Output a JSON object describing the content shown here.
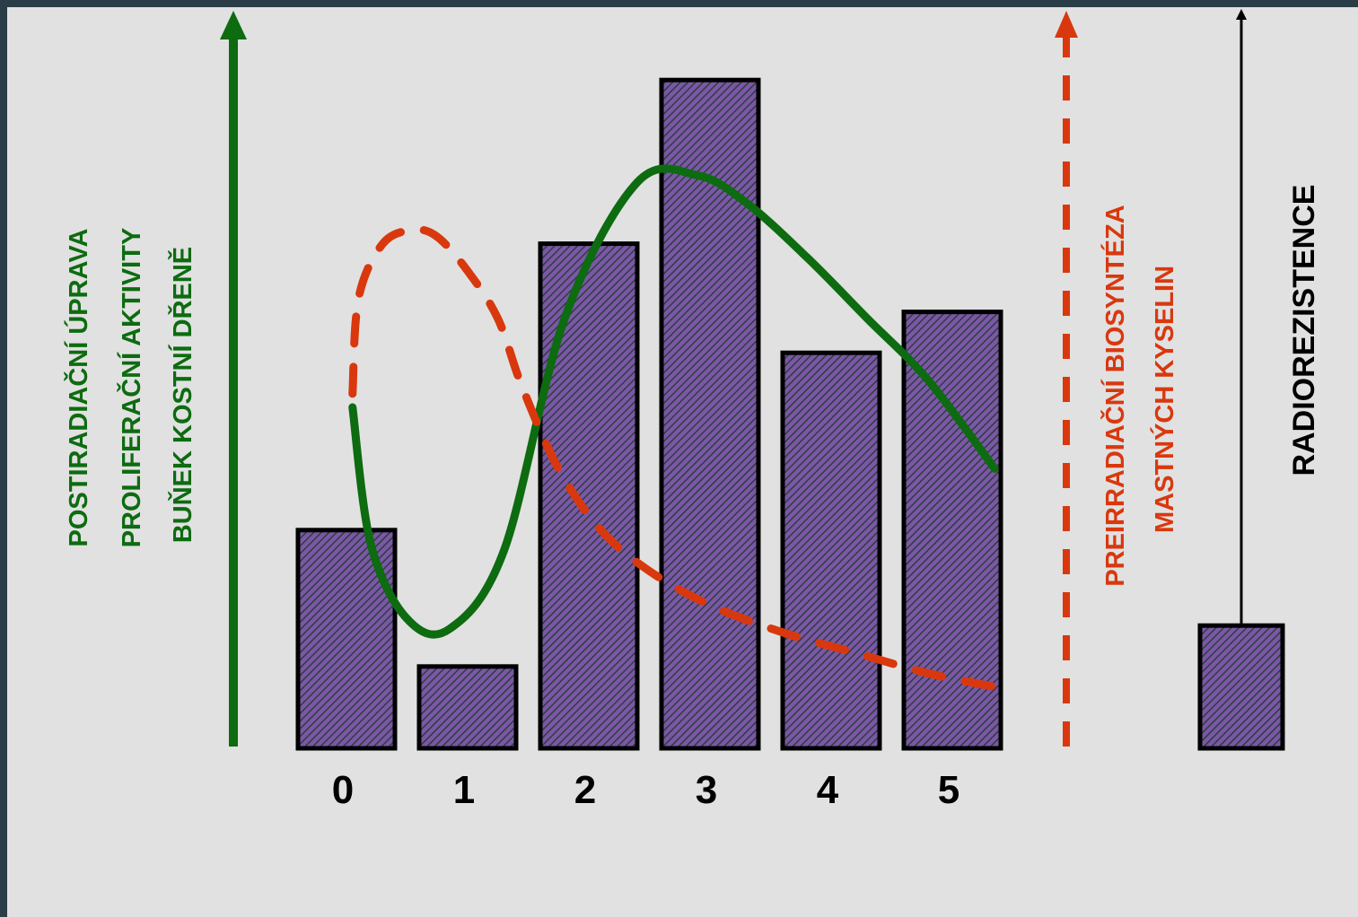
{
  "chart_data": {
    "type": "bar",
    "categories": [
      "0",
      "1",
      "2",
      "3",
      "4",
      "5"
    ],
    "values": [
      32,
      12,
      74,
      98,
      58,
      64
    ],
    "reference_bar": {
      "value": 18,
      "label": "RADIOREZISTENCE"
    },
    "ylim": [
      0,
      100
    ],
    "left_axis": {
      "label_lines": [
        "POSTIRADIAČNÍ ÚPRAVA",
        "PROLIFERAČNÍ AKTIVITY",
        "BUŇEK KOSTNÍ DŘENĚ"
      ],
      "color": "#0d6b10"
    },
    "right_axis": {
      "label_lines": [
        "PREIRRADIAČNÍ BIOSYNTÉZA",
        "MASTNÝCH KYSELIN"
      ],
      "color": "#d9380e"
    },
    "series": [
      {
        "style": "solid",
        "color": "#0d6b10",
        "x": [
          0.05,
          0.2,
          0.5,
          0.85,
          1.3,
          1.8,
          2.4,
          2.9,
          3.3,
          3.8,
          4.3,
          4.8,
          5.35
        ],
        "y": [
          50,
          30,
          19,
          17.5,
          29,
          63,
          83,
          84,
          80,
          72,
          63,
          54,
          41
        ]
      },
      {
        "style": "dashed",
        "color": "#d9380e",
        "x": [
          0.05,
          0.1,
          0.3,
          0.55,
          0.75,
          1.0,
          1.25,
          1.45,
          1.75,
          2.1,
          2.5,
          3.0,
          3.6,
          4.2,
          4.8,
          5.35
        ],
        "y": [
          52,
          66,
          74,
          76,
          75,
          70,
          63,
          53,
          41,
          32,
          26,
          21,
          17,
          14,
          11,
          9
        ]
      }
    ],
    "bar_fill": "#7b57a8",
    "bar_hatch": "#2e3e3a"
  }
}
